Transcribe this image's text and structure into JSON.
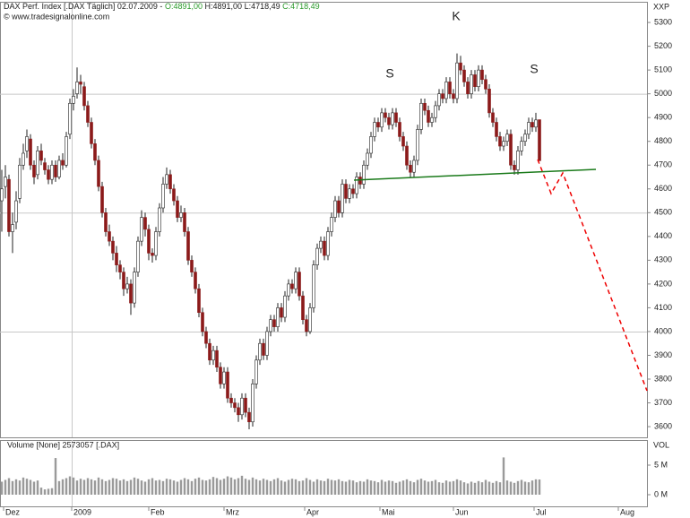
{
  "chart_data": {
    "type": "candlestick",
    "header": {
      "title": "DAX Perf. Index [.DAX  Täglich] 02.07.2009 -",
      "open": "O:4891,00",
      "high": "H:4891,00",
      "low": "L:4718,49",
      "close": "C:4718,49"
    },
    "source": "© www.tradesignalonline.com",
    "unit": "XXP",
    "annotations": [
      "S",
      "K",
      "S"
    ],
    "up_color": "#ffffff",
    "down_color": "#8b1a1a",
    "ylim": [
      3555,
      5387
    ],
    "yticks": [
      3600,
      3700,
      3800,
      3900,
      4000,
      4100,
      4200,
      4300,
      4400,
      4500,
      4600,
      4700,
      4800,
      4900,
      5000,
      5100,
      5200,
      5300
    ],
    "ygrid": [
      4000,
      4500,
      5000
    ],
    "xlim": [
      -0.5,
      180
    ],
    "xticks": [
      {
        "value": 0.5,
        "label": "Dez"
      },
      {
        "value": 19.5,
        "label": "2009"
      },
      {
        "value": 41,
        "label": "Feb"
      },
      {
        "value": 62,
        "label": "Mrz"
      },
      {
        "value": 84.5,
        "label": "Apr"
      },
      {
        "value": 105.5,
        "label": "Mai"
      },
      {
        "value": 126,
        "label": "Jun"
      },
      {
        "value": 148.5,
        "label": "Jul"
      },
      {
        "value": 172,
        "label": "Aug"
      }
    ],
    "xgrid": [
      19.5
    ],
    "ohlc": [
      [
        4550,
        4680,
        4420,
        4600
      ],
      [
        4610,
        4700,
        4560,
        4650
      ],
      [
        4640,
        4660,
        4400,
        4420
      ],
      [
        4420,
        4500,
        4330,
        4450
      ],
      [
        4460,
        4590,
        4430,
        4550
      ],
      [
        4560,
        4730,
        4540,
        4700
      ],
      [
        4700,
        4790,
        4680,
        4750
      ],
      [
        4760,
        4850,
        4730,
        4820
      ],
      [
        4810,
        4830,
        4680,
        4700
      ],
      [
        4700,
        4720,
        4620,
        4650
      ],
      [
        4660,
        4780,
        4640,
        4760
      ],
      [
        4760,
        4790,
        4700,
        4720
      ],
      [
        4710,
        4730,
        4660,
        4680
      ],
      [
        4680,
        4700,
        4620,
        4640
      ],
      [
        4640,
        4720,
        4620,
        4700
      ],
      [
        4700,
        4720,
        4630,
        4650
      ],
      [
        4650,
        4740,
        4640,
        4720
      ],
      [
        4720,
        4750,
        4680,
        4700
      ],
      [
        4700,
        4840,
        4690,
        4820
      ],
      [
        4830,
        4980,
        4810,
        4960
      ],
      [
        4960,
        5020,
        4930,
        4990
      ],
      [
        5000,
        5111,
        4980,
        5050
      ],
      [
        5050,
        5080,
        5000,
        5040
      ],
      [
        5030,
        5050,
        4930,
        4950
      ],
      [
        4950,
        4970,
        4860,
        4880
      ],
      [
        4880,
        4900,
        4770,
        4790
      ],
      [
        4790,
        4810,
        4700,
        4720
      ],
      [
        4720,
        4740,
        4590,
        4610
      ],
      [
        4610,
        4630,
        4480,
        4500
      ],
      [
        4500,
        4520,
        4400,
        4420
      ],
      [
        4420,
        4450,
        4360,
        4380
      ],
      [
        4380,
        4400,
        4300,
        4330
      ],
      [
        4330,
        4360,
        4250,
        4280
      ],
      [
        4280,
        4300,
        4220,
        4250
      ],
      [
        4250,
        4270,
        4150,
        4180
      ],
      [
        4180,
        4230,
        4160,
        4200
      ],
      [
        4200,
        4220,
        4070,
        4120
      ],
      [
        4120,
        4270,
        4100,
        4250
      ],
      [
        4250,
        4400,
        4230,
        4380
      ],
      [
        4380,
        4510,
        4360,
        4480
      ],
      [
        4480,
        4500,
        4400,
        4430
      ],
      [
        4430,
        4450,
        4300,
        4330
      ],
      [
        4330,
        4350,
        4290,
        4320
      ],
      [
        4320,
        4440,
        4300,
        4420
      ],
      [
        4420,
        4540,
        4400,
        4520
      ],
      [
        4520,
        4650,
        4500,
        4620
      ],
      [
        4620,
        4690,
        4600,
        4660
      ],
      [
        4660,
        4680,
        4580,
        4600
      ],
      [
        4600,
        4620,
        4530,
        4550
      ],
      [
        4550,
        4570,
        4460,
        4480
      ],
      [
        4480,
        4530,
        4460,
        4500
      ],
      [
        4500,
        4520,
        4400,
        4420
      ],
      [
        4420,
        4440,
        4280,
        4300
      ],
      [
        4300,
        4320,
        4230,
        4250
      ],
      [
        4250,
        4270,
        4160,
        4180
      ],
      [
        4180,
        4200,
        4060,
        4080
      ],
      [
        4080,
        4100,
        3980,
        4000
      ],
      [
        4000,
        4020,
        3930,
        3950
      ],
      [
        3950,
        3970,
        3860,
        3880
      ],
      [
        3880,
        3940,
        3860,
        3920
      ],
      [
        3920,
        3940,
        3830,
        3850
      ],
      [
        3850,
        3870,
        3760,
        3780
      ],
      [
        3780,
        3850,
        3760,
        3830
      ],
      [
        3830,
        3850,
        3700,
        3720
      ],
      [
        3720,
        3740,
        3680,
        3700
      ],
      [
        3700,
        3720,
        3660,
        3680
      ],
      [
        3680,
        3700,
        3620,
        3650
      ],
      [
        3650,
        3740,
        3630,
        3720
      ],
      [
        3720,
        3740,
        3640,
        3660
      ],
      [
        3660,
        3680,
        3589,
        3620
      ],
      [
        3620,
        3800,
        3600,
        3780
      ],
      [
        3780,
        3900,
        3760,
        3880
      ],
      [
        3880,
        3970,
        3860,
        3950
      ],
      [
        3950,
        3970,
        3880,
        3900
      ],
      [
        3900,
        4020,
        3880,
        4000
      ],
      [
        4000,
        4070,
        3980,
        4050
      ],
      [
        4050,
        4070,
        4000,
        4020
      ],
      [
        4020,
        4120,
        4000,
        4100
      ],
      [
        4100,
        4120,
        4040,
        4060
      ],
      [
        4060,
        4170,
        4040,
        4150
      ],
      [
        4150,
        4220,
        4130,
        4200
      ],
      [
        4200,
        4220,
        4160,
        4180
      ],
      [
        4180,
        4270,
        4160,
        4250
      ],
      [
        4250,
        4270,
        4130,
        4150
      ],
      [
        4150,
        4170,
        4030,
        4050
      ],
      [
        4050,
        4070,
        3980,
        4000
      ],
      [
        4000,
        4120,
        3990,
        4100
      ],
      [
        4100,
        4300,
        4080,
        4280
      ],
      [
        4280,
        4370,
        4260,
        4350
      ],
      [
        4350,
        4400,
        4330,
        4380
      ],
      [
        4380,
        4400,
        4300,
        4320
      ],
      [
        4320,
        4440,
        4300,
        4420
      ],
      [
        4420,
        4500,
        4400,
        4480
      ],
      [
        4480,
        4570,
        4460,
        4550
      ],
      [
        4550,
        4570,
        4480,
        4500
      ],
      [
        4500,
        4640,
        4480,
        4620
      ],
      [
        4620,
        4640,
        4540,
        4560
      ],
      [
        4560,
        4620,
        4540,
        4600
      ],
      [
        4600,
        4620,
        4560,
        4580
      ],
      [
        4580,
        4670,
        4560,
        4650
      ],
      [
        4650,
        4670,
        4600,
        4620
      ],
      [
        4620,
        4720,
        4600,
        4700
      ],
      [
        4700,
        4770,
        4680,
        4750
      ],
      [
        4750,
        4840,
        4730,
        4820
      ],
      [
        4820,
        4900,
        4800,
        4880
      ],
      [
        4880,
        4900,
        4840,
        4860
      ],
      [
        4860,
        4940,
        4840,
        4920
      ],
      [
        4920,
        4940,
        4880,
        4900
      ],
      [
        4900,
        4920,
        4850,
        4870
      ],
      [
        4870,
        4940,
        4850,
        4920
      ],
      [
        4920,
        4940,
        4860,
        4880
      ],
      [
        4880,
        4900,
        4800,
        4820
      ],
      [
        4820,
        4840,
        4760,
        4780
      ],
      [
        4780,
        4800,
        4680,
        4700
      ],
      [
        4700,
        4720,
        4650,
        4670
      ],
      [
        4670,
        4740,
        4650,
        4720
      ],
      [
        4720,
        4870,
        4700,
        4850
      ],
      [
        4850,
        4980,
        4830,
        4960
      ],
      [
        4960,
        4980,
        4910,
        4930
      ],
      [
        4930,
        4950,
        4860,
        4880
      ],
      [
        4880,
        4920,
        4860,
        4900
      ],
      [
        4900,
        4970,
        4880,
        4950
      ],
      [
        4950,
        5020,
        4930,
        5000
      ],
      [
        5000,
        5020,
        4960,
        4980
      ],
      [
        4980,
        5070,
        4960,
        5050
      ],
      [
        5050,
        5070,
        4980,
        5000
      ],
      [
        5000,
        5020,
        4960,
        4980
      ],
      [
        4980,
        5170,
        4960,
        5130
      ],
      [
        5130,
        5160,
        5080,
        5100
      ],
      [
        5100,
        5120,
        5030,
        5050
      ],
      [
        5050,
        5070,
        4980,
        5000
      ],
      [
        5000,
        5100,
        4980,
        5080
      ],
      [
        5080,
        5100,
        5010,
        5030
      ],
      [
        5030,
        5120,
        5010,
        5100
      ],
      [
        5100,
        5120,
        5040,
        5060
      ],
      [
        5060,
        5080,
        5000,
        5020
      ],
      [
        5020,
        5040,
        4900,
        4920
      ],
      [
        4920,
        4940,
        4860,
        4880
      ],
      [
        4880,
        4900,
        4800,
        4820
      ],
      [
        4820,
        4840,
        4760,
        4780
      ],
      [
        4780,
        4820,
        4760,
        4800
      ],
      [
        4800,
        4850,
        4780,
        4830
      ],
      [
        4830,
        4850,
        4680,
        4700
      ],
      [
        4700,
        4720,
        4660,
        4680
      ],
      [
        4680,
        4780,
        4660,
        4760
      ],
      [
        4760,
        4820,
        4740,
        4800
      ],
      [
        4800,
        4850,
        4780,
        4830
      ],
      [
        4830,
        4900,
        4810,
        4880
      ],
      [
        4880,
        4900,
        4840,
        4860
      ],
      [
        4860,
        4920,
        4840,
        4890
      ],
      [
        4891,
        4891,
        4718.49,
        4718.49
      ]
    ],
    "volume": {
      "title": "Volume [None] 2573057 [.DAX]",
      "unit": "VOL",
      "color": "#9a9a9a",
      "ylim": [
        -1.97,
        9.24
      ],
      "yticks": [
        {
          "value": 5,
          "label": "5 M"
        },
        {
          "value": 0,
          "label": "0 M"
        }
      ],
      "values": [
        2.2,
        2.5,
        2.8,
        2.3,
        2.6,
        2.4,
        2.9,
        2.7,
        2.5,
        2.2,
        2.4,
        1.2,
        0.9,
        1.0,
        1.1,
        6.2,
        2.3,
        2.6,
        2.8,
        3.1,
        2.9,
        2.4,
        2.7,
        2.5,
        2.8,
        2.6,
        2.4,
        2.9,
        2.6,
        2.3,
        2.5,
        2.8,
        2.7,
        2.4,
        2.6,
        2.3,
        2.5,
        2.9,
        2.7,
        2.4,
        2.2,
        2.6,
        2.8,
        2.4,
        2.5,
        2.3,
        2.7,
        2.6,
        2.4,
        2.2,
        2.5,
        2.8,
        2.6,
        2.3,
        2.7,
        2.9,
        2.5,
        2.4,
        2.6,
        3.0,
        2.8,
        2.5,
        2.7,
        3.1,
        2.9,
        2.6,
        2.8,
        3.2,
        2.7,
        2.5,
        2.9,
        2.6,
        2.4,
        2.7,
        2.5,
        2.3,
        2.6,
        2.8,
        2.4,
        2.2,
        2.5,
        2.7,
        2.6,
        2.3,
        2.4,
        2.8,
        2.5,
        2.2,
        2.6,
        2.4,
        2.3,
        2.7,
        2.5,
        2.4,
        2.6,
        2.3,
        2.2,
        2.5,
        2.4,
        2.1,
        2.3,
        2.2,
        2.6,
        2.4,
        2.3,
        2.1,
        2.5,
        2.2,
        2.4,
        2.3,
        2.0,
        2.2,
        2.4,
        2.6,
        2.3,
        2.1,
        2.5,
        2.7,
        2.4,
        2.2,
        2.3,
        2.5,
        2.1,
        2.0,
        2.4,
        2.2,
        2.3,
        2.6,
        2.4,
        2.1,
        1.9,
        2.2,
        2.0,
        2.3,
        2.1,
        2.5,
        2.2,
        2.0,
        2.3,
        2.1,
        6.3,
        2.4,
        2.2,
        2.0,
        2.3,
        2.5,
        2.2,
        2.1,
        2.4,
        2.6,
        2.57
      ]
    }
  }
}
